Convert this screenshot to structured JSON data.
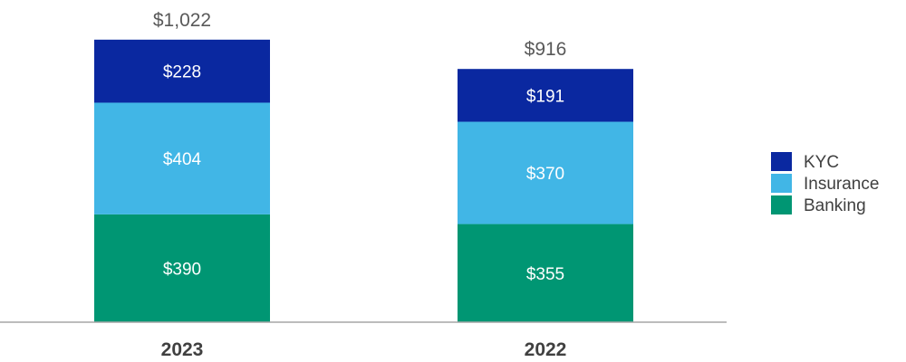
{
  "chart_data": {
    "type": "bar",
    "stacked": true,
    "title": "",
    "xlabel": "",
    "ylabel": "",
    "ylim": [
      0,
      1100
    ],
    "grid": false,
    "legend_position": "right",
    "categories": [
      "2023",
      "2022"
    ],
    "totals": [
      1022,
      916
    ],
    "total_labels": [
      "$1,022",
      "$916"
    ],
    "series": [
      {
        "name": "Banking",
        "color": "#009673",
        "values": [
          390,
          355
        ],
        "labels": [
          "$390",
          "$355"
        ]
      },
      {
        "name": "Insurance",
        "color": "#41B6E6",
        "values": [
          404,
          370
        ],
        "labels": [
          "$404",
          "$370"
        ]
      },
      {
        "name": "KYC",
        "color": "#0A28A0",
        "values": [
          228,
          191
        ],
        "labels": [
          "$228",
          "$191"
        ]
      }
    ],
    "legend_order": [
      "KYC",
      "Insurance",
      "Banking"
    ]
  }
}
